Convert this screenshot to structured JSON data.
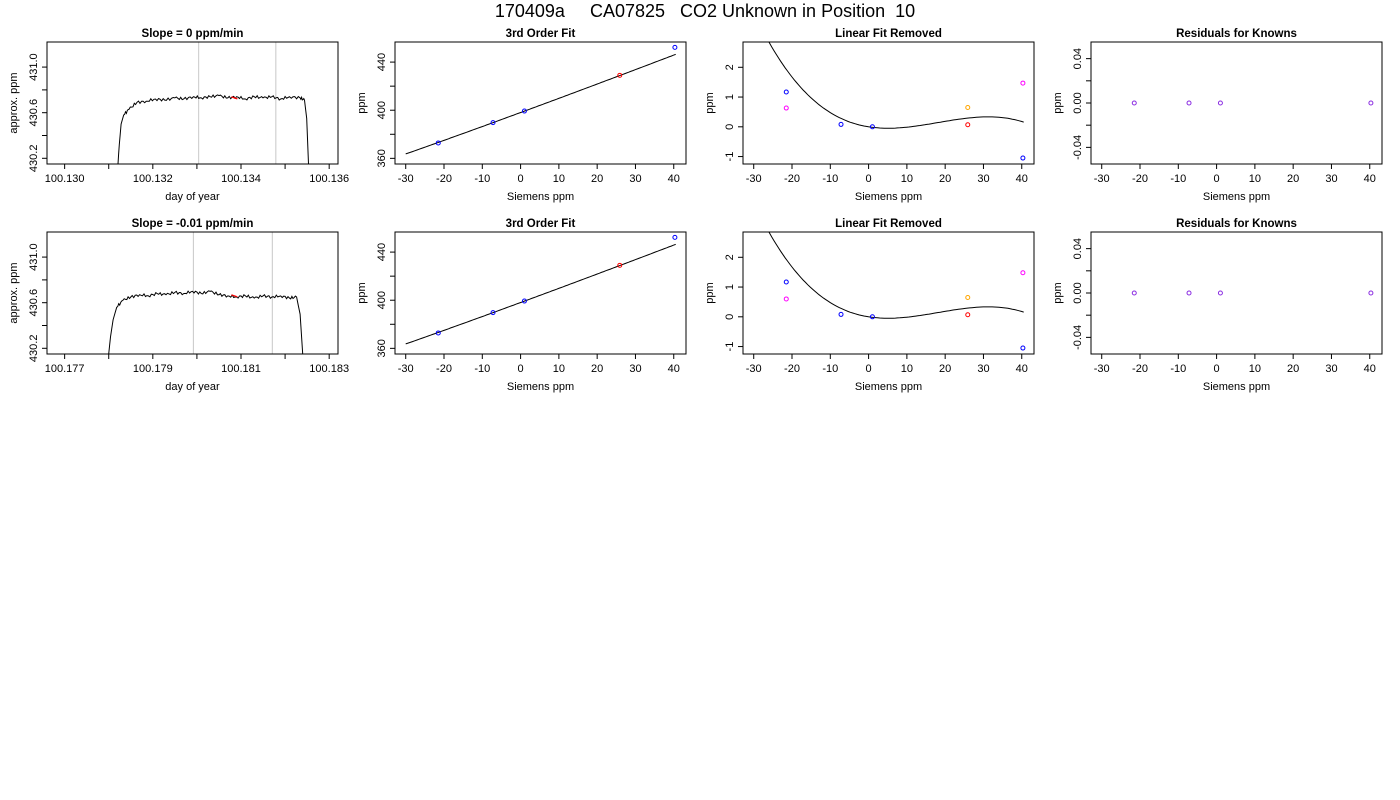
{
  "page": {
    "title": "170409a     CA07825   CO2 Unknown in Position  10"
  },
  "colors": {
    "trace": "#000000",
    "window": "#c8c8c8",
    "point_red": "#ff0000",
    "point_blue": "#0000ff",
    "point_magenta": "#ff00ff",
    "point_orange": "#ffa500",
    "point_purple": "#8a2be2"
  },
  "chart_data": [
    {
      "type": "line",
      "title": "Slope =  0  ppm/min",
      "xlabel": "day of year",
      "ylabel": "approx. ppm",
      "xlim": [
        100.1296,
        100.1362
      ],
      "ylim": [
        430.15,
        431.22
      ],
      "xticks": [
        100.13,
        100.131,
        100.132,
        100.133,
        100.134,
        100.135,
        100.136
      ],
      "xtick_labels": [
        "100.130",
        "",
        "100.132",
        "",
        "100.134",
        "",
        "100.136"
      ],
      "yticks": [
        430.2,
        430.4,
        430.6,
        430.8,
        431.0
      ],
      "ytick_labels": [
        "430.2",
        "",
        "430.6",
        "",
        "431.0"
      ],
      "vlines": [
        100.13304,
        100.13479
      ],
      "trace_x": [
        100.13121,
        100.13124,
        100.13128,
        100.13134,
        100.13146,
        100.13164,
        100.13185,
        100.13206,
        100.13227,
        100.1325,
        100.1327,
        100.13292,
        100.1331,
        100.1333,
        100.1335,
        100.1337,
        100.1339,
        100.1341,
        100.1343,
        100.1345,
        100.1347,
        100.1349,
        100.1351,
        100.13534,
        100.13544,
        100.13549,
        100.13553
      ],
      "trace_y": [
        430.15,
        430.32,
        430.5,
        430.58,
        430.63,
        430.69,
        430.7,
        430.72,
        430.71,
        430.73,
        430.72,
        430.74,
        430.73,
        430.74,
        430.75,
        430.73,
        430.74,
        430.72,
        430.74,
        430.73,
        430.74,
        430.72,
        430.74,
        430.73,
        430.71,
        430.55,
        430.15
      ],
      "trace_noise": 0.012,
      "marker": {
        "x": 100.13385,
        "y": 430.73,
        "color": "#ff0000"
      }
    },
    {
      "type": "scatter",
      "title": "3rd Order Fit",
      "xlabel": "Siemens ppm",
      "ylabel": "ppm",
      "xlim": [
        -32.8,
        43.2
      ],
      "ylim": [
        355.3,
        456.7
      ],
      "xticks": [
        -30,
        -20,
        -10,
        0,
        10,
        20,
        30,
        40
      ],
      "xtick_labels": [
        "-30",
        "-20",
        "-10",
        "0",
        "10",
        "20",
        "30",
        "40"
      ],
      "yticks": [
        360,
        380,
        400,
        420,
        440
      ],
      "ytick_labels": [
        "360",
        "",
        "400",
        "",
        "440"
      ],
      "curve": {
        "type": "cubic",
        "coef": [
          398.08,
          1.1715,
          0.0007,
          -3.7e-06
        ],
        "xrange": [
          -30,
          40.5
        ]
      },
      "points": [
        {
          "x": -21.5,
          "y": 372.8,
          "color": "#0000ff"
        },
        {
          "x": -7.2,
          "y": 389.7,
          "color": "#0000ff"
        },
        {
          "x": 1.0,
          "y": 399.3,
          "color": "#0000ff"
        },
        {
          "x": 25.9,
          "y": 429.0,
          "color": "#ff0000"
        },
        {
          "x": 40.3,
          "y": 452.2,
          "color": "#0000ff"
        }
      ]
    },
    {
      "type": "scatter",
      "title": "Linear Fit Removed",
      "xlabel": "Siemens ppm",
      "ylabel": "ppm",
      "xlim": [
        -32.8,
        43.2
      ],
      "ylim": [
        -1.25,
        2.85
      ],
      "xticks": [
        -30,
        -20,
        -10,
        0,
        10,
        20,
        30,
        40
      ],
      "xtick_labels": [
        "-30",
        "-20",
        "-10",
        "0",
        "10",
        "20",
        "30",
        "40"
      ],
      "yticks": [
        -1,
        0,
        1,
        2
      ],
      "ytick_labels": [
        "-1",
        "0",
        "1",
        "2"
      ],
      "curve": {
        "type": "cubic",
        "coef": [
          0.0,
          -0.0202,
          0.00232,
          -4.26e-05
        ],
        "xrange": [
          -30,
          40.5
        ]
      },
      "points": [
        {
          "x": -21.5,
          "y": 1.17,
          "color": "#0000ff"
        },
        {
          "x": -21.5,
          "y": 0.63,
          "color": "#ff00ff"
        },
        {
          "x": -7.2,
          "y": 0.08,
          "color": "#0000ff"
        },
        {
          "x": 1.0,
          "y": 0.0,
          "color": "#0000ff"
        },
        {
          "x": 25.9,
          "y": 0.07,
          "color": "#ff0000"
        },
        {
          "x": 25.9,
          "y": 0.65,
          "color": "#ffa500"
        },
        {
          "x": 40.3,
          "y": -1.05,
          "color": "#0000ff"
        },
        {
          "x": 40.3,
          "y": 1.47,
          "color": "#ff00ff"
        }
      ]
    },
    {
      "type": "scatter",
      "title": "Residuals for Knowns",
      "xlabel": "Siemens ppm",
      "ylabel": "ppm",
      "xlim": [
        -32.8,
        43.2
      ],
      "ylim": [
        -0.055,
        0.055
      ],
      "xticks": [
        -30,
        -20,
        -10,
        0,
        10,
        20,
        30,
        40
      ],
      "xtick_labels": [
        "-30",
        "-20",
        "-10",
        "0",
        "10",
        "20",
        "30",
        "40"
      ],
      "yticks": [
        -0.04,
        -0.02,
        0.0,
        0.02,
        0.04
      ],
      "ytick_labels": [
        "-0.04",
        "",
        "0.00",
        "",
        "0.04"
      ],
      "points": [
        {
          "x": -21.5,
          "y": 0.0,
          "color": "#8a2be2"
        },
        {
          "x": -7.2,
          "y": 0.0,
          "color": "#8a2be2"
        },
        {
          "x": 1.0,
          "y": 0.0,
          "color": "#8a2be2"
        },
        {
          "x": 40.3,
          "y": 0.0,
          "color": "#8a2be2"
        }
      ]
    },
    {
      "type": "line",
      "title": "Slope =  -0.01  ppm/min",
      "xlabel": "day of year",
      "ylabel": "approx. ppm",
      "xlim": [
        100.1766,
        100.1832
      ],
      "ylim": [
        430.15,
        431.22
      ],
      "xticks": [
        100.177,
        100.178,
        100.179,
        100.18,
        100.181,
        100.182,
        100.183
      ],
      "xtick_labels": [
        "100.177",
        "",
        "100.179",
        "",
        "100.181",
        "",
        "100.183"
      ],
      "yticks": [
        430.2,
        430.4,
        430.6,
        430.8,
        431.0
      ],
      "ytick_labels": [
        "430.2",
        "",
        "430.6",
        "",
        "431.0"
      ],
      "vlines": [
        100.17992,
        100.18171
      ],
      "trace_x": [
        100.178,
        100.17804,
        100.1781,
        100.17818,
        100.17832,
        100.1785,
        100.1787,
        100.1789,
        100.1791,
        100.1793,
        100.1795,
        100.1797,
        100.1799,
        100.1801,
        100.1803,
        100.1805,
        100.1807,
        100.1809,
        100.1811,
        100.1813,
        100.1815,
        100.1817,
        100.1819,
        100.1821,
        100.18226,
        100.18234,
        100.1824
      ],
      "trace_y": [
        430.15,
        430.3,
        430.45,
        430.56,
        430.62,
        430.65,
        430.67,
        430.66,
        430.68,
        430.67,
        430.69,
        430.68,
        430.7,
        430.68,
        430.7,
        430.67,
        430.66,
        430.65,
        430.66,
        430.64,
        430.66,
        430.65,
        430.66,
        430.64,
        430.65,
        430.5,
        430.15
      ],
      "trace_noise": 0.012,
      "marker": {
        "x": 100.18085,
        "y": 430.66,
        "color": "#ff0000"
      }
    },
    {
      "type": "scatter",
      "title": "3rd Order Fit",
      "xlabel": "Siemens ppm",
      "ylabel": "ppm",
      "xlim": [
        -32.8,
        43.2
      ],
      "ylim": [
        355.3,
        456.7
      ],
      "xticks": [
        -30,
        -20,
        -10,
        0,
        10,
        20,
        30,
        40
      ],
      "xtick_labels": [
        "-30",
        "-20",
        "-10",
        "0",
        "10",
        "20",
        "30",
        "40"
      ],
      "yticks": [
        360,
        380,
        400,
        420,
        440
      ],
      "ytick_labels": [
        "360",
        "",
        "400",
        "",
        "440"
      ],
      "curve": {
        "type": "cubic",
        "coef": [
          398.08,
          1.1715,
          0.0007,
          -3.7e-06
        ],
        "xrange": [
          -30,
          40.5
        ]
      },
      "points": [
        {
          "x": -21.5,
          "y": 372.8,
          "color": "#0000ff"
        },
        {
          "x": -7.2,
          "y": 389.7,
          "color": "#0000ff"
        },
        {
          "x": 1.0,
          "y": 399.3,
          "color": "#0000ff"
        },
        {
          "x": 25.9,
          "y": 429.0,
          "color": "#ff0000"
        },
        {
          "x": 40.3,
          "y": 452.2,
          "color": "#0000ff"
        }
      ]
    },
    {
      "type": "scatter",
      "title": "Linear Fit Removed",
      "xlabel": "Siemens ppm",
      "ylabel": "ppm",
      "xlim": [
        -32.8,
        43.2
      ],
      "ylim": [
        -1.25,
        2.85
      ],
      "xticks": [
        -30,
        -20,
        -10,
        0,
        10,
        20,
        30,
        40
      ],
      "xtick_labels": [
        "-30",
        "-20",
        "-10",
        "0",
        "10",
        "20",
        "30",
        "40"
      ],
      "yticks": [
        -1,
        0,
        1,
        2
      ],
      "ytick_labels": [
        "-1",
        "0",
        "1",
        "2"
      ],
      "curve": {
        "type": "cubic",
        "coef": [
          0.0,
          -0.0202,
          0.00232,
          -4.26e-05
        ],
        "xrange": [
          -30,
          40.5
        ]
      },
      "points": [
        {
          "x": -21.5,
          "y": 1.17,
          "color": "#0000ff"
        },
        {
          "x": -21.5,
          "y": 0.6,
          "color": "#ff00ff"
        },
        {
          "x": -7.2,
          "y": 0.08,
          "color": "#0000ff"
        },
        {
          "x": 1.0,
          "y": 0.0,
          "color": "#0000ff"
        },
        {
          "x": 25.9,
          "y": 0.07,
          "color": "#ff0000"
        },
        {
          "x": 25.9,
          "y": 0.65,
          "color": "#ffa500"
        },
        {
          "x": 40.3,
          "y": -1.05,
          "color": "#0000ff"
        },
        {
          "x": 40.3,
          "y": 1.48,
          "color": "#ff00ff"
        }
      ]
    },
    {
      "type": "scatter",
      "title": "Residuals for Knowns",
      "xlabel": "Siemens ppm",
      "ylabel": "ppm",
      "xlim": [
        -32.8,
        43.2
      ],
      "ylim": [
        -0.055,
        0.055
      ],
      "xticks": [
        -30,
        -20,
        -10,
        0,
        10,
        20,
        30,
        40
      ],
      "xtick_labels": [
        "-30",
        "-20",
        "-10",
        "0",
        "10",
        "20",
        "30",
        "40"
      ],
      "yticks": [
        -0.04,
        -0.02,
        0.0,
        0.02,
        0.04
      ],
      "ytick_labels": [
        "-0.04",
        "",
        "0.00",
        "",
        "0.04"
      ],
      "points": [
        {
          "x": -21.5,
          "y": 0.0,
          "color": "#8a2be2"
        },
        {
          "x": -7.2,
          "y": 0.0,
          "color": "#8a2be2"
        },
        {
          "x": 1.0,
          "y": 0.0,
          "color": "#8a2be2"
        },
        {
          "x": 40.3,
          "y": 0.0,
          "color": "#8a2be2"
        }
      ]
    }
  ]
}
